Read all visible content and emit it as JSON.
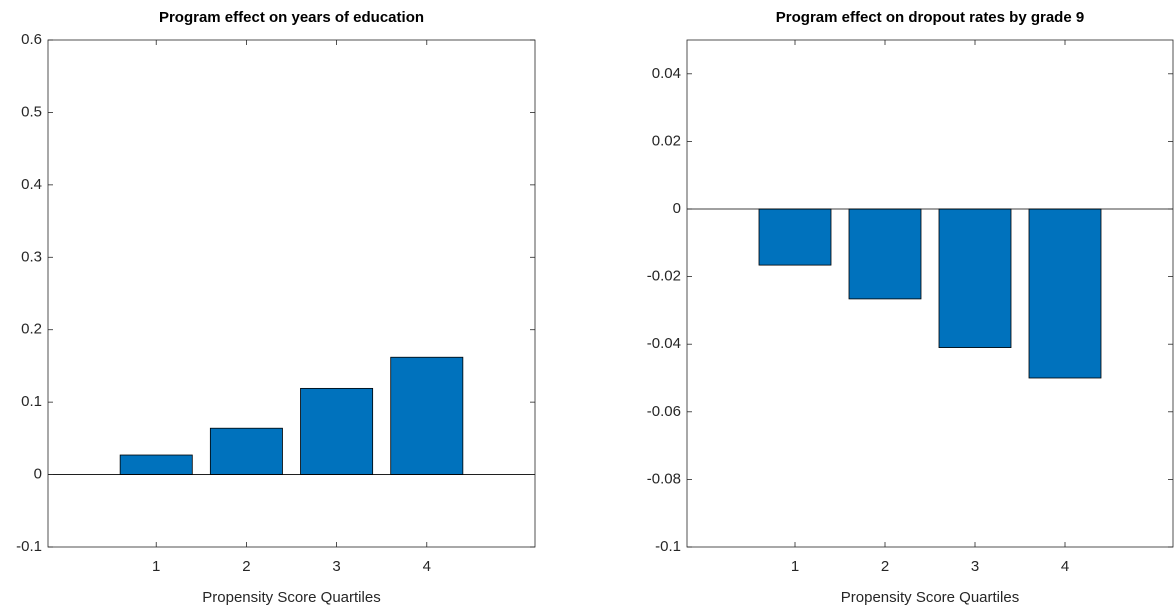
{
  "chart_data": [
    {
      "type": "bar",
      "title": "Program effect on years of education",
      "x_label": "Propensity Score Quartiles",
      "x": [
        1,
        2,
        3,
        4
      ],
      "values": [
        0.027,
        0.064,
        0.119,
        0.162
      ],
      "color": "#0072bd",
      "xlim": [
        -0.2,
        5.2
      ],
      "xticks": [
        1,
        2,
        3,
        4
      ],
      "ylim": [
        -0.1,
        0.6
      ],
      "yticks": [
        -0.1,
        0,
        0.1,
        0.2,
        0.3,
        0.4,
        0.5,
        0.6
      ]
    },
    {
      "type": "bar",
      "title": "Program effect on dropout rates by grade 9",
      "x_label": "Propensity Score Quartiles",
      "x": [
        1,
        2,
        3,
        4
      ],
      "values": [
        -0.0166,
        -0.0266,
        -0.041,
        -0.05
      ],
      "color": "#0072bd",
      "xlim": [
        -0.2,
        5.2
      ],
      "xticks": [
        1,
        2,
        3,
        4
      ],
      "ylim": [
        -0.1,
        0.05
      ],
      "yticks": [
        -0.1,
        -0.08,
        -0.06,
        -0.04,
        -0.02,
        0,
        0.02,
        0.04
      ]
    }
  ]
}
